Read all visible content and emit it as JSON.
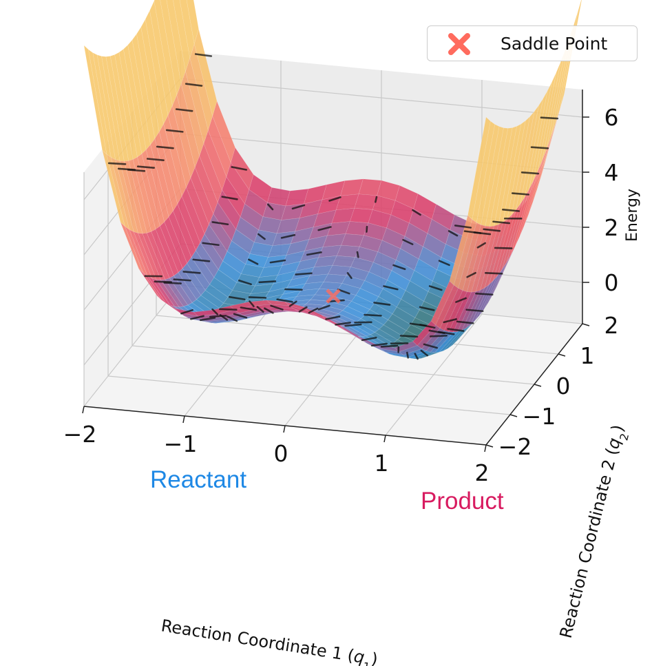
{
  "chart_data": {
    "type": "surface",
    "title": "",
    "xlabel": "Reaction Coordinate 1 (q1)",
    "ylabel": "Reaction Coordinate 2 (q2)",
    "zlabel": "Energy",
    "xlim": [
      -2,
      2
    ],
    "ylim": [
      -2,
      2
    ],
    "zlim": [
      -1.5,
      7
    ],
    "xticks": [
      "−2",
      "−1",
      "0",
      "1",
      "2"
    ],
    "yticks": [
      "−2",
      "−1",
      "0",
      "1",
      "2"
    ],
    "zticks": [
      "0",
      "2",
      "4",
      "6"
    ],
    "surface_function": "E(q1,q2) = (q1^2 - 1)^2 + 0.5*q2^2 - 0.3*q1",
    "grid": true,
    "minima": [
      {
        "label": "Reactant",
        "q1": -1,
        "q2": 0,
        "color": "#1e88e5"
      },
      {
        "label": "Product",
        "q1": 1,
        "q2": 0,
        "color": "#d81b60"
      }
    ],
    "saddle_point": {
      "q1": 0,
      "q2": 0,
      "energy": 1.0,
      "color": "#ff6b5e"
    },
    "legend": {
      "placement": "top-right",
      "entries": [
        "Saddle Point"
      ]
    },
    "colors": {
      "low": "#2e6b63",
      "mid_low": "#3a8fd9",
      "mid": "#d93c6b",
      "high": "#f7c76a",
      "vector": "#111111"
    },
    "gradient_field": "negative gradient arrows plotted on surface"
  },
  "legend": {
    "saddle_label": "Saddle Point"
  },
  "annotations": {
    "reactant": "Reactant",
    "product": "Product"
  }
}
